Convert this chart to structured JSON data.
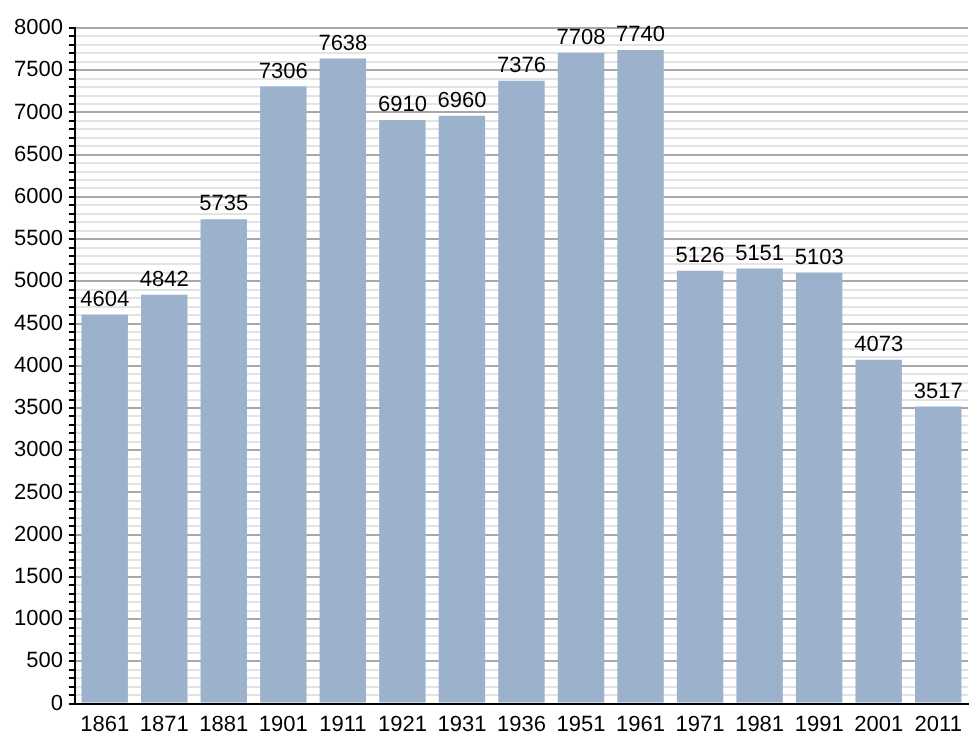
{
  "chart_data": {
    "type": "bar",
    "categories": [
      "1861",
      "1871",
      "1881",
      "1901",
      "1911",
      "1921",
      "1931",
      "1936",
      "1951",
      "1961",
      "1971",
      "1981",
      "1991",
      "2001",
      "2011"
    ],
    "values": [
      4604,
      4842,
      5735,
      7306,
      7638,
      6910,
      6960,
      7376,
      7708,
      7740,
      5126,
      5151,
      5103,
      4073,
      3517
    ],
    "color": "#9bb1cc",
    "ylim": [
      0,
      8000
    ],
    "yticks": [
      0,
      {
        "value": 100,
        "label": null
      },
      {
        "value": 200,
        "label": null
      },
      {
        "value": 300,
        "label": null
      },
      {
        "value": 400,
        "label": null
      },
      500,
      {
        "value": 600,
        "label": null
      },
      {
        "value": 700,
        "label": null
      },
      {
        "value": 800,
        "label": null
      },
      {
        "value": 900,
        "label": null
      },
      1000,
      {
        "value": 1100,
        "label": null
      },
      {
        "value": 1200,
        "label": null
      },
      {
        "value": 1300,
        "label": null
      },
      {
        "value": 1400,
        "label": null
      },
      1500,
      {
        "value": 1600,
        "label": null
      },
      {
        "value": 1700,
        "label": null
      },
      {
        "value": 1800,
        "label": null
      },
      {
        "value": 1900,
        "label": null
      },
      2000,
      {
        "value": 2100,
        "label": null
      },
      {
        "value": 2200,
        "label": null
      },
      {
        "value": 2300,
        "label": null
      },
      {
        "value": 2400,
        "label": null
      },
      2500,
      {
        "value": 2600,
        "label": null
      },
      {
        "value": 2700,
        "label": null
      },
      {
        "value": 2800,
        "label": null
      },
      {
        "value": 2900,
        "label": null
      },
      3000,
      {
        "value": 3100,
        "label": null
      },
      {
        "value": 3200,
        "label": null
      },
      {
        "value": 3300,
        "label": null
      },
      {
        "value": 3400,
        "label": null
      },
      3500,
      {
        "value": 3600,
        "label": null
      },
      {
        "value": 3700,
        "label": null
      },
      {
        "value": 3800,
        "label": null
      },
      {
        "value": 3900,
        "label": null
      },
      4000,
      {
        "value": 4100,
        "label": null
      },
      {
        "value": 4200,
        "label": null
      },
      {
        "value": 4300,
        "label": null
      },
      {
        "value": 4400,
        "label": null
      },
      4500,
      {
        "value": 4600,
        "label": null
      },
      {
        "value": 4700,
        "label": null
      },
      {
        "value": 4800,
        "label": null
      },
      {
        "value": 4900,
        "label": null
      },
      5000,
      {
        "value": 5100,
        "label": null
      },
      {
        "value": 5200,
        "label": null
      },
      {
        "value": 5300,
        "label": null
      },
      {
        "value": 5400,
        "label": null
      },
      5500,
      {
        "value": 5600,
        "label": null
      },
      {
        "value": 5700,
        "label": null
      },
      {
        "value": 5800,
        "label": null
      },
      {
        "value": 5900,
        "label": null
      },
      6000,
      {
        "value": 6100,
        "label": null
      },
      {
        "value": 6200,
        "label": null
      },
      {
        "value": 6300,
        "label": null
      },
      {
        "value": 6400,
        "label": null
      },
      6500,
      {
        "value": 6600,
        "label": null
      },
      {
        "value": 6700,
        "label": null
      },
      {
        "value": 6800,
        "label": null
      },
      {
        "value": 6900,
        "label": null
      },
      7000,
      {
        "value": 7100,
        "label": null
      },
      {
        "value": 7200,
        "label": null
      },
      {
        "value": 7300,
        "label": null
      },
      {
        "value": 7400,
        "label": null
      },
      7500,
      {
        "value": 7600,
        "label": null
      },
      {
        "value": 7700,
        "label": null
      },
      {
        "value": 7800,
        "label": null
      },
      {
        "value": 7900,
        "label": null
      },
      8000
    ],
    "grid": "y",
    "data_labels": true
  }
}
